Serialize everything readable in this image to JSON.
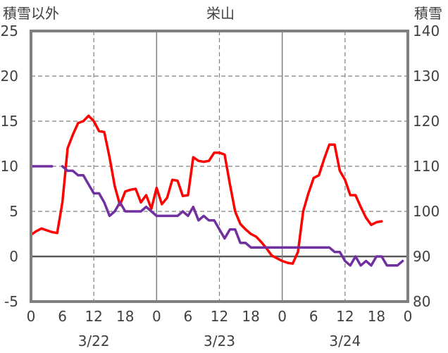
{
  "chart_data": {
    "type": "line",
    "title": "栄山",
    "y_left_label": "積雪以外",
    "y_right_label": "積雪",
    "y_left_range": [
      -5,
      25
    ],
    "y_right_range": [
      80,
      140
    ],
    "y_left_ticks": [
      "-5",
      "0",
      "5",
      "10",
      "15",
      "20",
      "25"
    ],
    "y_right_ticks": [
      "80",
      "90",
      "100",
      "110",
      "120",
      "130",
      "140"
    ],
    "x_range": [
      0,
      72
    ],
    "x_tick_labels": [
      "0",
      "6",
      "12",
      "18",
      "0",
      "6",
      "12",
      "18",
      "0",
      "6",
      "12",
      "18",
      "0"
    ],
    "date_labels": [
      "3/22",
      "3/23",
      "3/24"
    ],
    "grid": true,
    "series": [
      {
        "color": "#ff0000",
        "axis": "left",
        "x": [
          0,
          1,
          2,
          3,
          4,
          5,
          6,
          7,
          8,
          9,
          10,
          11,
          12,
          13,
          14,
          15,
          16,
          17,
          18,
          19,
          20,
          21,
          22,
          23,
          24,
          25,
          26,
          27,
          28,
          29,
          30,
          31,
          32,
          33,
          34,
          35,
          36,
          37,
          38,
          39,
          40,
          41,
          42,
          43,
          44,
          45,
          46,
          47,
          48,
          49,
          50,
          51,
          52,
          53,
          54,
          55,
          56,
          57,
          58,
          59,
          60,
          61,
          62,
          63,
          64,
          65,
          66,
          67,
          68,
          69,
          70,
          71
        ],
        "values": [
          2.4,
          2.8,
          3.1,
          2.9,
          2.7,
          2.6,
          6,
          12,
          13.5,
          14.8,
          15,
          15.6,
          15,
          13.9,
          13.8,
          11,
          7.8,
          5.7,
          7.2,
          7.4,
          7.5,
          6,
          6.8,
          5.3,
          7.6,
          5.8,
          6.5,
          8.5,
          8.4,
          6.7,
          6.8,
          11,
          10.6,
          10.5,
          10.6,
          11.5,
          11.5,
          11.3,
          8,
          5,
          3.6,
          3,
          2.5,
          2.2,
          1.6,
          0.9,
          0.1,
          -0.2,
          -0.5,
          -0.7,
          -0.8,
          0.5,
          5,
          7,
          8.7,
          9,
          10.8,
          12.4,
          12.4,
          9.5,
          8.5,
          6.8,
          6.8,
          5.5,
          4.3,
          3.5,
          3.8,
          3.9,
          null,
          null,
          null,
          null
        ]
      },
      {
        "color": "#7030a0",
        "axis": "right",
        "x": [
          0,
          1,
          2,
          3,
          4,
          6,
          7,
          8,
          9,
          10,
          11,
          12,
          13,
          14,
          15,
          16,
          17,
          18,
          19,
          20,
          21,
          22,
          23,
          24,
          25,
          26,
          27,
          28,
          29,
          30,
          31,
          32,
          33,
          34,
          35,
          36,
          37,
          38,
          39,
          40,
          41,
          42,
          43,
          44,
          45,
          46,
          47,
          48,
          49,
          50,
          51,
          52,
          53,
          54,
          55,
          56,
          57,
          58,
          59,
          60,
          61,
          62,
          63,
          64,
          65,
          66,
          67,
          68,
          69,
          70,
          71
        ],
        "values": [
          110,
          110,
          110,
          110,
          110,
          110,
          109,
          109,
          108,
          108,
          106,
          104,
          104,
          102,
          99,
          100,
          102,
          100,
          100,
          100,
          100,
          101,
          100,
          99,
          99,
          99,
          99,
          99,
          100,
          99,
          101,
          98,
          99,
          98,
          98,
          96,
          94,
          96,
          96,
          93,
          93,
          92,
          92,
          92,
          92,
          92,
          92,
          92,
          92,
          92,
          92,
          92,
          92,
          92,
          92,
          92,
          92,
          91,
          91,
          89,
          88,
          90,
          88,
          89,
          88,
          90,
          90,
          88,
          88,
          88,
          89
        ]
      }
    ]
  }
}
